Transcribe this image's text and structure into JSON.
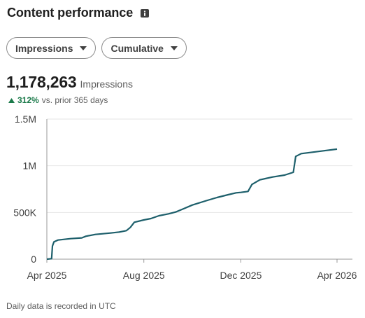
{
  "header": {
    "title": "Content performance",
    "info_icon": "info-icon"
  },
  "filters": {
    "metric": {
      "label": "Impressions",
      "icon": "chevron-down-icon"
    },
    "mode": {
      "label": "Cumulative",
      "icon": "chevron-down-icon"
    }
  },
  "summary": {
    "value": "1,178,263",
    "label": "Impressions",
    "change_pct": "312%",
    "change_text": "vs. prior 365 days",
    "change_icon": "triangle-up-icon"
  },
  "footnote": "Daily data is recorded in UTC",
  "colors": {
    "line": "#1d5f6b",
    "positive": "#1b7a4a",
    "grid": "#e6e6e6"
  },
  "chart_data": {
    "type": "line",
    "title": "",
    "xlabel": "",
    "ylabel": "",
    "ylim": [
      0,
      1500000
    ],
    "yticks": [
      {
        "value": 0,
        "label": "0"
      },
      {
        "value": 500000,
        "label": "500K"
      },
      {
        "value": 1000000,
        "label": "1M"
      },
      {
        "value": 1500000,
        "label": "1.5M"
      }
    ],
    "xlim": [
      "2025-04-01",
      "2026-04-01"
    ],
    "xticks": [
      {
        "value": "2025-04-01",
        "label": "Apr 2025"
      },
      {
        "value": "2025-08-01",
        "label": "Aug 2025"
      },
      {
        "value": "2025-12-01",
        "label": "Dec 2025"
      },
      {
        "value": "2026-04-01",
        "label": "Apr 2026"
      }
    ],
    "grid": true,
    "series": [
      {
        "x": [
          "2025-04-01",
          "2025-04-07",
          "2025-04-08",
          "2025-04-10",
          "2025-04-15",
          "2025-05-01",
          "2025-05-15",
          "2025-05-20",
          "2025-06-01",
          "2025-06-20",
          "2025-07-01",
          "2025-07-10",
          "2025-07-15",
          "2025-07-20",
          "2025-08-01",
          "2025-08-10",
          "2025-08-20",
          "2025-09-01",
          "2025-09-10",
          "2025-09-20",
          "2025-10-01",
          "2025-10-20",
          "2025-11-01",
          "2025-11-15",
          "2025-11-25",
          "2025-12-01",
          "2025-12-10",
          "2025-12-15",
          "2025-12-25",
          "2026-01-10",
          "2026-01-25",
          "2026-02-05",
          "2026-02-08",
          "2026-02-15",
          "2026-03-01",
          "2026-03-15",
          "2026-04-01"
        ],
        "y": [
          0,
          5000,
          140000,
          185000,
          205000,
          220000,
          228000,
          245000,
          265000,
          280000,
          290000,
          305000,
          340000,
          395000,
          420000,
          435000,
          465000,
          485000,
          505000,
          540000,
          580000,
          630000,
          660000,
          690000,
          710000,
          715000,
          725000,
          800000,
          850000,
          880000,
          900000,
          930000,
          1100000,
          1130000,
          1145000,
          1160000,
          1178263
        ]
      }
    ]
  }
}
